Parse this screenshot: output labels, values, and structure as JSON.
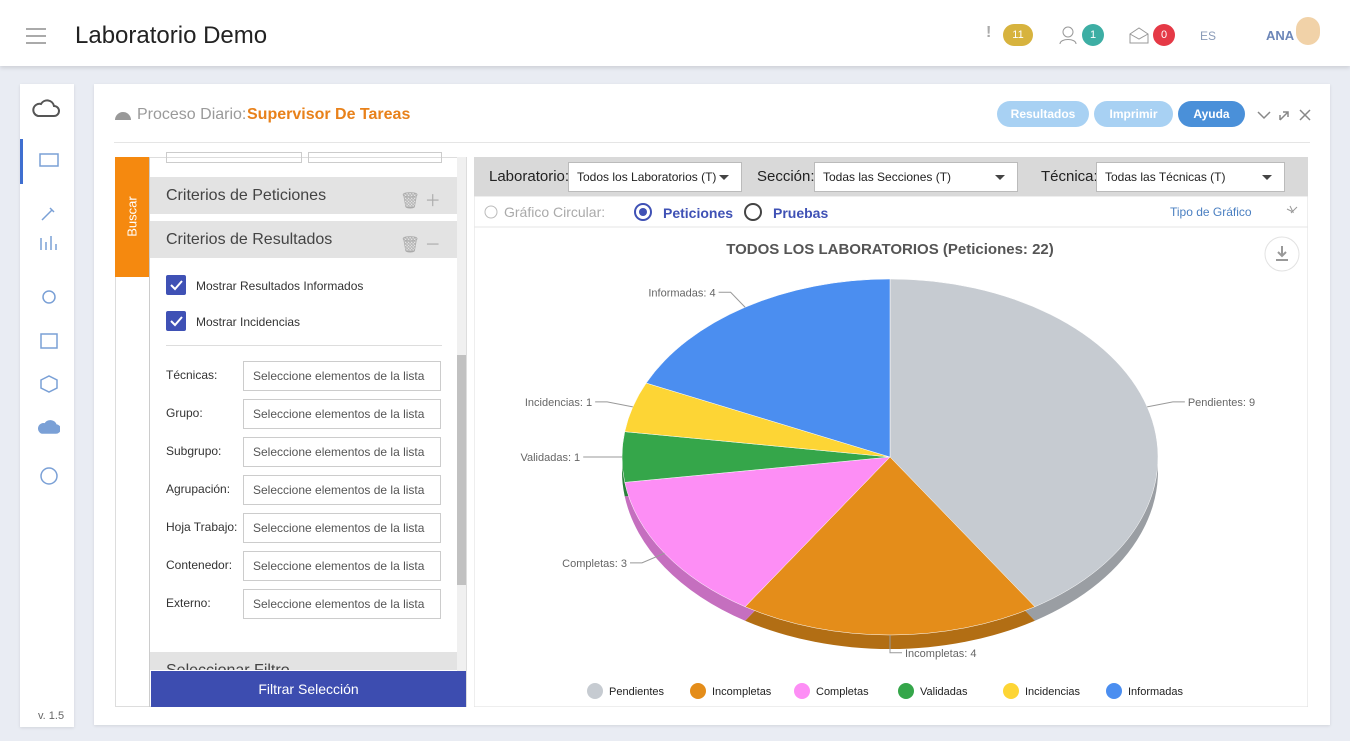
{
  "header": {
    "app_title": "Laboratorio Demo",
    "alerts": "11",
    "users": "1",
    "messages": "0",
    "language": "ES",
    "user": "ANA"
  },
  "sidebar": {
    "version": "v. 1.5"
  },
  "panel": {
    "title_prefix": "Proceso Diario:",
    "title": "Supervisor De Tareas",
    "buttons": [
      "Resultados",
      "Imprimir",
      "Ayuda"
    ]
  },
  "filters": {
    "tab": "Buscar",
    "sections": [
      "Criterios de Peticiones",
      "Criterios de Resultados",
      "Seleccionar Filtro"
    ],
    "checkboxes": [
      "Mostrar Resultados Informados",
      "Mostrar Incidencias"
    ],
    "fields": [
      {
        "label": "Técnicas:",
        "placeholder": "Seleccione elementos de la lista"
      },
      {
        "label": "Grupo:",
        "placeholder": "Seleccione elementos de la lista"
      },
      {
        "label": "Subgrupo:",
        "placeholder": "Seleccione elementos de la lista"
      },
      {
        "label": "Agrupación:",
        "placeholder": "Seleccione elementos de la lista"
      },
      {
        "label": "Hoja Trabajo:",
        "placeholder": "Seleccione elementos de la lista"
      },
      {
        "label": "Contenedor:",
        "placeholder": "Seleccione elementos de la lista"
      },
      {
        "label": "Externo:",
        "placeholder": "Seleccione elementos de la lista"
      }
    ],
    "button": "Filtrar Selección"
  },
  "toolbar": {
    "filters": [
      {
        "label": "Laboratorio:",
        "value": "Todos los Laboratorios (T)"
      },
      {
        "label": "Sección:",
        "value": "Todas las Secciones (T)"
      },
      {
        "label": "Técnica:",
        "value": "Todas las Técnicas (T)"
      }
    ]
  },
  "chart_header": {
    "label": "Gráfico Circular:",
    "options": [
      "Peticiones",
      "Pruebas"
    ],
    "chart_type": "Tipo de Gráfico"
  },
  "chart_data": {
    "type": "pie",
    "title": "TODOS LOS LABORATORIOS (Peticiones: 22)",
    "categories": [
      "Pendientes",
      "Incompletas",
      "Completas",
      "Validadas",
      "Incidencias",
      "Informadas"
    ],
    "values": [
      9,
      4,
      3,
      1,
      1,
      4
    ],
    "value_labels": [
      "Pendientes: 9",
      "Incompletas: 4",
      "Completas: 3",
      "Validadas: 1",
      "Incidencias: 1",
      "Informadas: 4"
    ],
    "colors": [
      "#c6cbd1",
      "#e48d1a",
      "#fd8ef5",
      "#35a64a",
      "#fdd535",
      "#4b8ef0"
    ]
  }
}
